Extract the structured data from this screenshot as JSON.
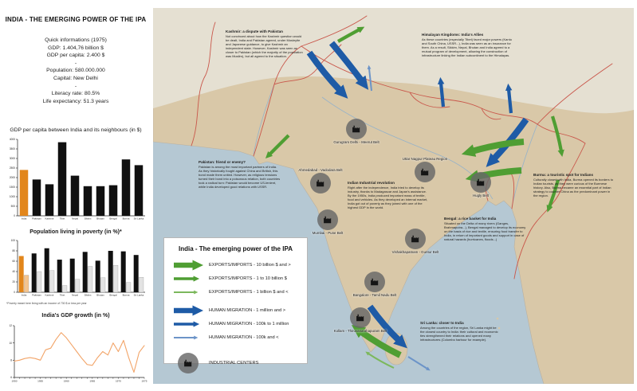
{
  "panel": {
    "title": "INDIA - THE EMERGING POWER OF THE IPA",
    "quick_info": [
      "Quick informations (1975)",
      "GDP: 1.404,76 billion $",
      "GDP per capita: 2.400 $",
      "-",
      "Population: 580.000.000",
      "Capital: New Delhi",
      "-",
      "Literacy rate: 80.5%",
      "Life expectancy: 51.3 years"
    ]
  },
  "chart_data": [
    {
      "type": "bar",
      "title": "GDP per capita between India and its neighbours (in $)",
      "categories": [
        "India",
        "Pakistan",
        "Kashmir",
        "Tibet",
        "Nepal",
        "Sikkim",
        "Bhutan",
        "Bengal",
        "Burma",
        "Sri Lanka"
      ],
      "values": [
        2400,
        1900,
        1650,
        3850,
        2100,
        1550,
        1550,
        1600,
        2950,
        2650
      ],
      "ylim": [
        0,
        4000
      ],
      "ytick_step": 500,
      "highlight_index": 0,
      "xlabel": "",
      "ylabel": ""
    },
    {
      "type": "bar",
      "title": "Population living in poverty (in %)*",
      "categories": [
        "India",
        "Pakistan",
        "Kashmir",
        "Tibet",
        "Nepal",
        "Sikkim",
        "Bhutan",
        "Bengal",
        "Burma",
        "Sri Lanka"
      ],
      "series": [
        {
          "values": [
            70,
            75,
            85,
            63,
            65,
            78,
            61,
            80,
            79,
            72
          ]
        },
        {
          "values": [
            33,
            40,
            42,
            13,
            25,
            50,
            28,
            52,
            19,
            29
          ]
        }
      ],
      "ylim": [
        0,
        100
      ],
      "ytick_step": 20,
      "highlight_index": 0,
      "footnote": "*Poverty meant here living with an income of 730 $ or less per year"
    },
    {
      "type": "line",
      "title": "India's GDP growth (in %)",
      "x_start": 1950,
      "x_end": 1975,
      "values": [
        7.9,
        8.0,
        8.2,
        8.3,
        8.2,
        8.0,
        9.2,
        9.4,
        10.4,
        11.2,
        10.6,
        9.8,
        9.0,
        8.2,
        7.5,
        7.4,
        8.3,
        9.0,
        8.6,
        10.0,
        9.0,
        10.3,
        8.3,
        6.6,
        8.9,
        9.7
      ],
      "ylim": [
        6,
        12
      ],
      "ytick_step": 2,
      "xtick_label_step": 5
    }
  ],
  "map": {
    "legend": {
      "title": "India - The emerging power of the IPA",
      "items": [
        {
          "icon": "arrow-green-thick",
          "label": "EXPORTS/IMPORTS - 10 billion $ and >"
        },
        {
          "icon": "arrow-green-medium",
          "label": "EXPORTS/IMPORTS - 1 to 10 billion $"
        },
        {
          "icon": "arrow-green-thin",
          "label": "EXPORTS/IMPORTS - 1 billion $ and <"
        },
        {
          "icon": "arrow-blue-thick",
          "label": "HUMAN MIGRATION - 1 million and >"
        },
        {
          "icon": "arrow-blue-medium",
          "label": "HUMAN MIGRATION - 100k to 1 million"
        },
        {
          "icon": "arrow-blue-thin",
          "label": "HUMAN MIGRATION - 100k and <"
        },
        {
          "icon": "factory-icon",
          "label": "INDUSTRIAL CENTERS"
        }
      ]
    },
    "annotations": [
      {
        "title": "Kashmir: a dispute with Pakistan",
        "body": "Not convinced about how the Kashmir question would be dealt, India and Pakistan agreed, under Mosleyite and Japanese guidance, to give Kashmir an independent state. However, Kashmir was seen as closer to Pakistan (which the majority of the population was Muslim), but all agreed to the situation."
      },
      {
        "title": "Himalayan Kingdoms: India's Allies",
        "body": "As these countries (especially Tibet) faced major powers (Kanto and South China, USSR...), India was seen as an insurance for them. As a result, Sikkim, Nepal, Bhutan and India agreed to a mutual program of development, allowing the construction of infrastructure linking the Indian subcontinent to the Himalayas."
      },
      {
        "title": "Pakistan: friend or enemy?",
        "body": "Pakistan is among the most important partners of India. As they historically fought against China and British, this bond made them united. However, as religious tensions turned their bond into a poisonous relation, both countries took a radical turn: Pakistan would become US-lenient, while India developed good relations with USSR."
      },
      {
        "title": "Indian Industrial revolution",
        "body": "Right after the independence, India tried to develop its industry, thanks to Madagascar and Japan's assistance. By the 1950s, India produced important mass of textile, food and vehicles. As they developed an internal market, India got out of poverty as they joined with one of the highest GDP in the world."
      },
      {
        "title": "Burma: a touristic spot for Indians",
        "body": "Culturally closed with India, Burma opened its borders to Indian tourists, as they were curious of the Burmese history. Also, Burma became an essential part of Indian strategy to counter China as the predominant power in the region."
      },
      {
        "title": "Bengal: a rice basket for India",
        "body": "Situated on the Delta of many rivers (Ganges, Brahmaputra...), Bengal managed to develop its economy on the basis of rice and textile, ensuring food transfer to India, in return of important goods and support in case of natural hazards (hurricanes, floods...)"
      },
      {
        "title": "Sri Lanka: closer to India",
        "body": "Among the countries of the region, Sri Lanka might be the closest country to India: their cultural and economic ties strengthened their relations and opened many infrastructures (Colombo harbour for example)."
      }
    ],
    "industrial_centers": [
      {
        "label": "Gurugram Delhi - Meerut Belt"
      },
      {
        "label": "Ahmedabad - Vadodara Belt"
      },
      {
        "label": "Uttar Nagpur Plateau Region"
      },
      {
        "label": "Hugly Belt"
      },
      {
        "label": "Mumbai - Pune Belt"
      },
      {
        "label": "Vishakhapatnam - Guntur Belt"
      },
      {
        "label": "Bangalore - Tamil Nadu Belt"
      },
      {
        "label": "Kollam - Thiruvananthapuram Belt"
      }
    ]
  },
  "colors": {
    "accent_orange": "#E2861B",
    "accent_orange_light": "#F4C48E",
    "bar_black": "#101010",
    "bar_gray": "#E3E3E3",
    "line_orange": "#F2A468",
    "green_arrow": "#4F9E33",
    "green_arrow_light": "#7CB85C",
    "blue_arrow": "#1E5BA6",
    "blue_arrow_light": "#6C94C8",
    "ocean": "#B5C8D3",
    "land": "#D9C8A8",
    "land_north": "#E6E2D6",
    "border_red": "#C9574B"
  }
}
